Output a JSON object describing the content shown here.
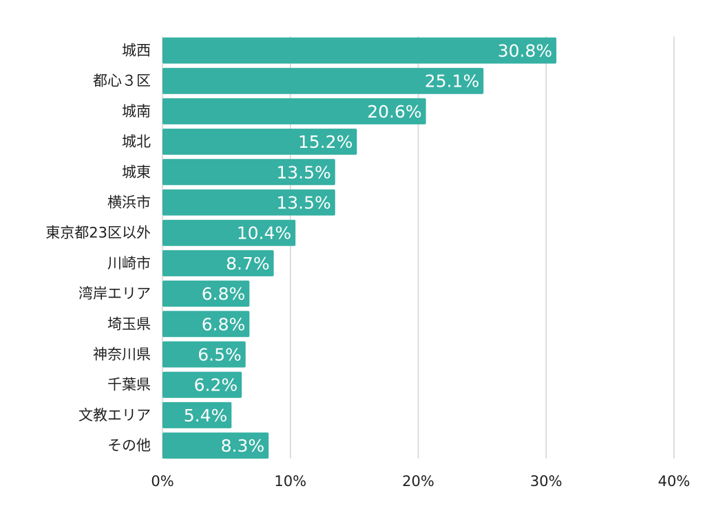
{
  "colors": {
    "bar": "#35b0a2",
    "grid": "#d4d4d4",
    "text": "#1f1f1f",
    "value_text": "#ffffff"
  },
  "chart_data": {
    "type": "bar",
    "orientation": "horizontal",
    "categories": [
      "城西",
      "都心３区",
      "城南",
      "城北",
      "城東",
      "横浜市",
      "東京都23区以外",
      "川崎市",
      "湾岸エリア",
      "埼玉県",
      "神奈川県",
      "千葉県",
      "文教エリア",
      "その他"
    ],
    "values": [
      30.8,
      25.1,
      20.6,
      15.2,
      13.5,
      13.5,
      10.4,
      8.7,
      6.8,
      6.8,
      6.5,
      6.2,
      5.4,
      8.3
    ],
    "value_labels": [
      "30.8%",
      "25.1%",
      "20.6%",
      "15.2%",
      "13.5%",
      "13.5%",
      "10.4%",
      "8.7%",
      "6.8%",
      "6.8%",
      "6.5%",
      "6.2%",
      "5.4%",
      "8.3%"
    ],
    "xlim": [
      0,
      40
    ],
    "xticks": [
      0,
      10,
      20,
      30,
      40
    ],
    "xtick_labels": [
      "0%",
      "10%",
      "20%",
      "30%",
      "40%"
    ],
    "title": "",
    "xlabel": "",
    "ylabel": "",
    "grid": "vertical",
    "legend": "none"
  }
}
